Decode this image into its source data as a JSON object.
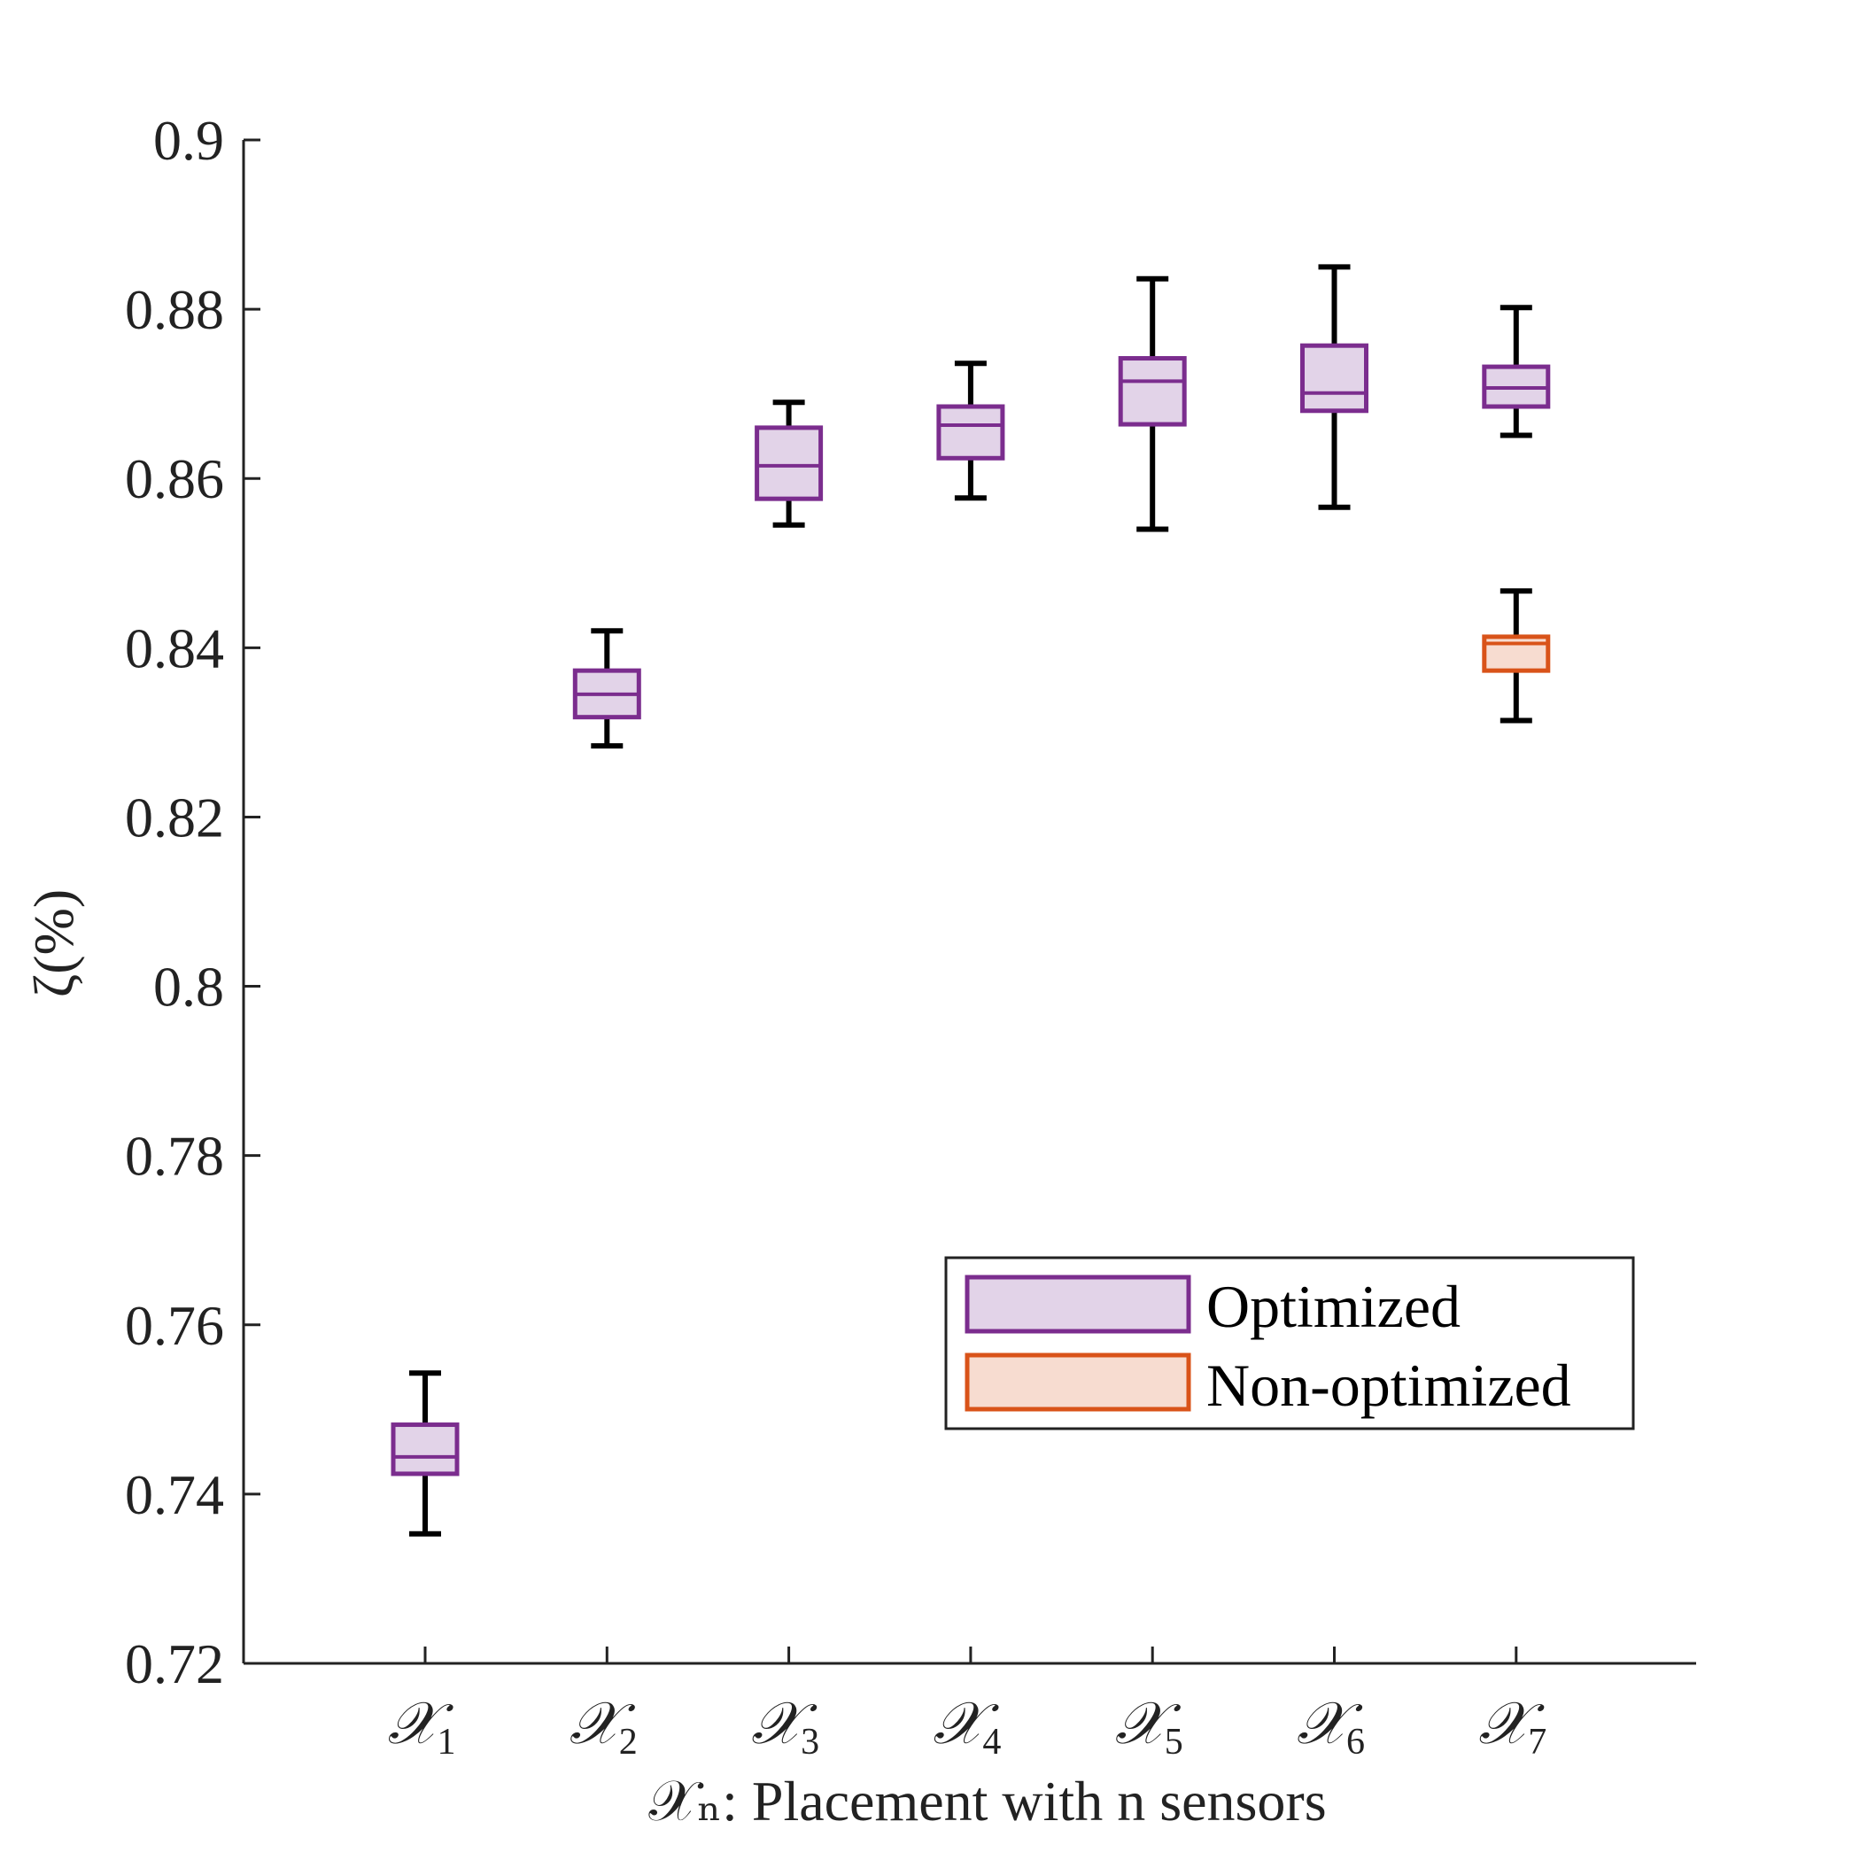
{
  "chart_data": {
    "type": "box",
    "ylabel": "ζ(%)",
    "xlabel": "𝒳ₙ: Placement with n sensors",
    "ylim": [
      0.72,
      0.9
    ],
    "yticks": [
      0.72,
      0.74,
      0.76,
      0.78,
      0.8,
      0.82,
      0.84,
      0.86,
      0.88,
      0.9
    ],
    "ytick_labels": [
      "0.72",
      "0.74",
      "0.76",
      "0.78",
      "0.8",
      "0.82",
      "0.84",
      "0.86",
      "0.88",
      "0.9"
    ],
    "categories": [
      {
        "symbol": "𝒳",
        "subscript": "1"
      },
      {
        "symbol": "𝒳",
        "subscript": "2"
      },
      {
        "symbol": "𝒳",
        "subscript": "3"
      },
      {
        "symbol": "𝒳",
        "subscript": "4"
      },
      {
        "symbol": "𝒳",
        "subscript": "5"
      },
      {
        "symbol": "𝒳",
        "subscript": "6"
      },
      {
        "symbol": "𝒳",
        "subscript": "7"
      }
    ],
    "series": [
      {
        "name": "Optimized",
        "edge_color": "#7b2d8e",
        "fill_color": "#e2d3e8",
        "boxes": [
          {
            "category_index": 0,
            "whisker_low": 0.7353,
            "q1": 0.7424,
            "median": 0.7444,
            "q3": 0.7482,
            "whisker_high": 0.7543
          },
          {
            "category_index": 1,
            "whisker_low": 0.8284,
            "q1": 0.8318,
            "median": 0.8345,
            "q3": 0.8373,
            "whisker_high": 0.842
          },
          {
            "category_index": 2,
            "whisker_low": 0.8545,
            "q1": 0.8576,
            "median": 0.8615,
            "q3": 0.866,
            "whisker_high": 0.869
          },
          {
            "category_index": 3,
            "whisker_low": 0.8577,
            "q1": 0.8624,
            "median": 0.8663,
            "q3": 0.8685,
            "whisker_high": 0.8736
          },
          {
            "category_index": 4,
            "whisker_low": 0.854,
            "q1": 0.8664,
            "median": 0.8715,
            "q3": 0.8742,
            "whisker_high": 0.8836
          },
          {
            "category_index": 5,
            "whisker_low": 0.8566,
            "q1": 0.868,
            "median": 0.8701,
            "q3": 0.8757,
            "whisker_high": 0.885
          },
          {
            "category_index": 6,
            "whisker_low": 0.8651,
            "q1": 0.8685,
            "median": 0.8707,
            "q3": 0.8732,
            "whisker_high": 0.8802
          }
        ]
      },
      {
        "name": "Non-optimized",
        "edge_color": "#d95319",
        "fill_color": "#f7dcd0",
        "boxes": [
          {
            "category_index": 6,
            "whisker_low": 0.8314,
            "q1": 0.8373,
            "median": 0.8405,
            "q3": 0.8413,
            "whisker_high": 0.8467
          }
        ]
      }
    ],
    "whisker_color": "#000000",
    "axis_color": "#222222",
    "grid": false,
    "legend": {
      "position": "lower-right",
      "entries": [
        "Optimized",
        "Non-optimized"
      ]
    }
  }
}
